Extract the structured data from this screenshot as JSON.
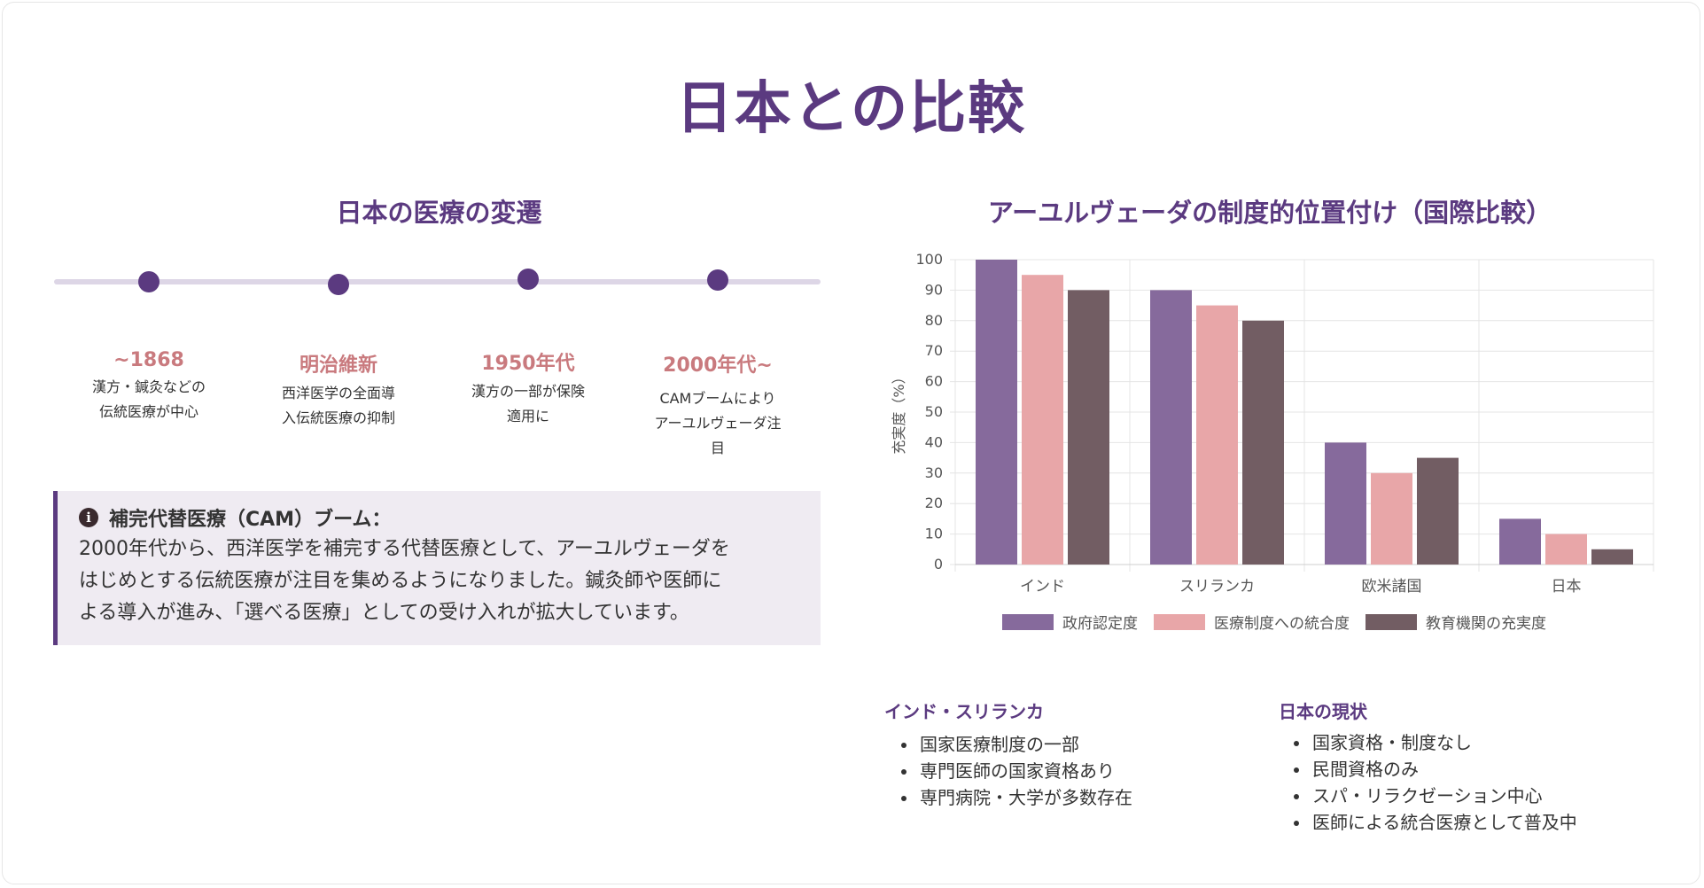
{
  "page": {
    "title": "日本との比較"
  },
  "timeline": {
    "title": "日本の医療の変遷",
    "items": [
      {
        "year": "~1868",
        "desc_lines": [
          "漢方・鍼灸などの",
          "伝統医療が中心"
        ]
      },
      {
        "year": "明治維新",
        "desc_lines": [
          "西洋医学の全面導",
          "入伝統医療の抑制"
        ]
      },
      {
        "year": "1950年代",
        "desc_lines": [
          "漢方の一部が保険",
          "適用に"
        ]
      },
      {
        "year": "2000年代~",
        "desc_lines": [
          "CAMブームにより",
          "アーユルヴェーダ注",
          "目"
        ]
      }
    ]
  },
  "info": {
    "heading": "補完代替医療（CAM）ブーム：",
    "lines": [
      "2000年代から、西洋医学を補完する代替医療として、アーユルヴェーダを",
      "はじめとする伝統医療が注目を集めるようになりました。鍼灸師や医師に",
      "よる導入が進み、「選べる医療」としての受け入れが拡大しています。"
    ]
  },
  "chart_data": {
    "type": "bar",
    "title": "アーユルヴェーダの制度的位置付け（国際比較）",
    "categories": [
      "インド",
      "スリランカ",
      "欧米諸国",
      "日本"
    ],
    "series": [
      {
        "name": "政府認定度",
        "values": [
          100,
          90,
          40,
          15
        ],
        "color": "#866a9c"
      },
      {
        "name": "医療制度への統合度",
        "values": [
          95,
          85,
          30,
          10
        ],
        "color": "#e8a6a8"
      },
      {
        "name": "教育機関の充実度",
        "values": [
          90,
          80,
          35,
          5
        ],
        "color": "#725d63"
      }
    ],
    "ylabel": "充実度（%）",
    "xlabel": "",
    "ylim": [
      0,
      100
    ],
    "yticks": [
      "0",
      "10",
      "20",
      "30",
      "40",
      "50",
      "60",
      "70",
      "80",
      "90",
      "100"
    ],
    "grid": true,
    "legend": "bottom"
  },
  "compare": {
    "india": {
      "title": "インド・スリランカ",
      "items": [
        "国家医療制度の一部",
        "専門医師の国家資格あり",
        "専門病院・大学が多数存在"
      ]
    },
    "japan": {
      "title": "日本の現状",
      "items": [
        "国家資格・制度なし",
        "民間資格のみ",
        "スパ・リラクゼーション中心",
        "医師による統合医療として普及中"
      ]
    }
  }
}
